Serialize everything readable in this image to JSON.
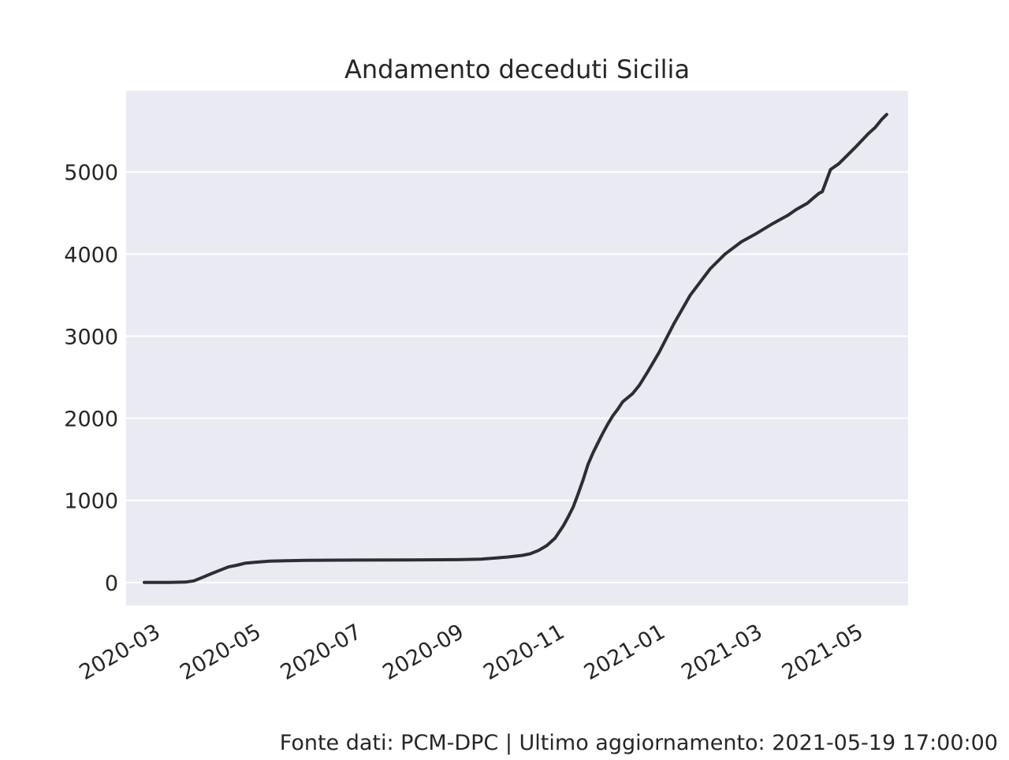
{
  "chart_data": {
    "type": "line",
    "title": "Andamento deceduti Sicilia",
    "xlabel": "",
    "ylabel": "",
    "x_axis_type": "date",
    "xlim": [
      "2020-02-13",
      "2021-06-01"
    ],
    "ylim": [
      -280,
      5990
    ],
    "y_ticks": [
      0,
      1000,
      2000,
      3000,
      4000,
      5000
    ],
    "x_ticks": [
      "2020-03",
      "2020-05",
      "2020-07",
      "2020-09",
      "2020-11",
      "2021-01",
      "2021-03",
      "2021-05"
    ],
    "x_tick_dates": [
      "2020-03-01",
      "2020-05-01",
      "2020-07-01",
      "2020-09-01",
      "2020-11-01",
      "2021-01-01",
      "2021-03-01",
      "2021-05-01"
    ],
    "grid": true,
    "legend": false,
    "colors": {
      "line": "#2b2e33",
      "plot_bg": "#eaeaf2",
      "grid": "#ffffff",
      "text": "#262626"
    },
    "series": [
      {
        "x": [
          "2020-02-24",
          "2020-03-10",
          "2020-03-20",
          "2020-03-25",
          "2020-03-30",
          "2020-04-05",
          "2020-04-10",
          "2020-04-15",
          "2020-04-20",
          "2020-04-25",
          "2020-05-01",
          "2020-05-10",
          "2020-05-20",
          "2020-06-01",
          "2020-06-20",
          "2020-07-01",
          "2020-08-01",
          "2020-09-01",
          "2020-09-15",
          "2020-09-25",
          "2020-10-01",
          "2020-10-10",
          "2020-10-15",
          "2020-10-20",
          "2020-10-25",
          "2020-10-30",
          "2020-11-04",
          "2020-11-07",
          "2020-11-10",
          "2020-11-13",
          "2020-11-16",
          "2020-11-19",
          "2020-11-22",
          "2020-11-25",
          "2020-11-28",
          "2020-12-01",
          "2020-12-04",
          "2020-12-07",
          "2020-12-10",
          "2020-12-13",
          "2020-12-16",
          "2020-12-20",
          "2020-12-25",
          "2021-01-01",
          "2021-01-10",
          "2021-01-20",
          "2021-02-01",
          "2021-02-10",
          "2021-02-20",
          "2021-03-01",
          "2021-03-10",
          "2021-03-20",
          "2021-03-25",
          "2021-04-01",
          "2021-04-05",
          "2021-04-08",
          "2021-04-10",
          "2021-04-15",
          "2021-04-20",
          "2021-04-25",
          "2021-05-01",
          "2021-05-08",
          "2021-05-12",
          "2021-05-16",
          "2021-05-19"
        ],
        "y": [
          0,
          0,
          5,
          20,
          60,
          110,
          150,
          190,
          210,
          235,
          245,
          260,
          265,
          270,
          272,
          273,
          275,
          278,
          285,
          300,
          310,
          330,
          350,
          390,
          450,
          540,
          690,
          800,
          920,
          1080,
          1250,
          1440,
          1580,
          1700,
          1820,
          1930,
          2030,
          2110,
          2200,
          2250,
          2300,
          2400,
          2560,
          2800,
          3150,
          3500,
          3820,
          4000,
          4150,
          4250,
          4360,
          4470,
          4540,
          4620,
          4690,
          4740,
          4760,
          5030,
          5100,
          5200,
          5320,
          5470,
          5540,
          5640,
          5700
        ]
      }
    ]
  },
  "footer": {
    "source": "Fonte dati: PCM-DPC | Ultimo aggiornamento: 2021-05-19 17:00:00"
  }
}
